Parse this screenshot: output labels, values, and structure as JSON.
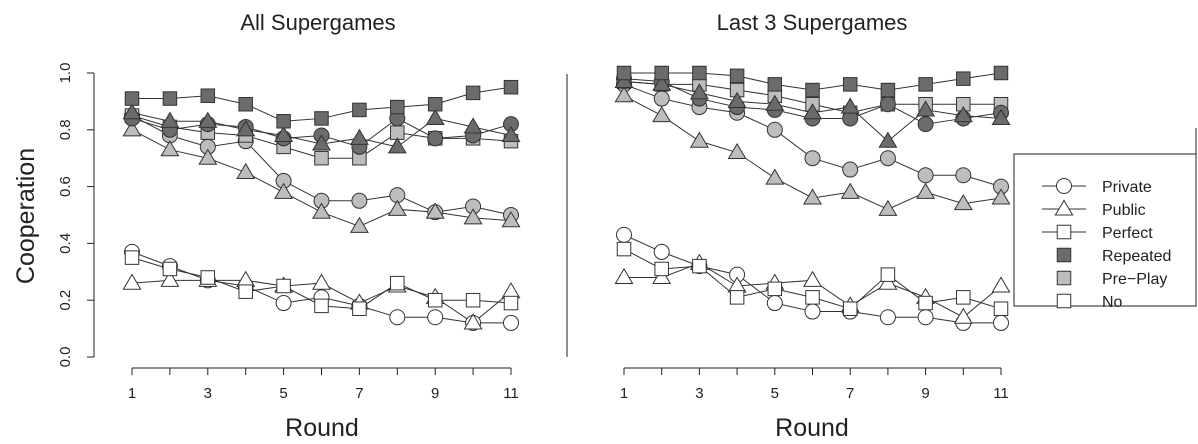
{
  "ylabel": "Cooperation",
  "colors": {
    "line": "#333333",
    "dark": "#6b6b6b",
    "gray": "#bdbdbd",
    "white": "#ffffff"
  },
  "legend": {
    "items": [
      {
        "label": "Private",
        "shape": "circle",
        "fill": "white",
        "line": true
      },
      {
        "label": "Public",
        "shape": "triangle",
        "fill": "white",
        "line": true
      },
      {
        "label": "Perfect",
        "shape": "square",
        "fill": "white",
        "line": true
      },
      {
        "label": "Repeated",
        "shape": "square",
        "fill": "dark",
        "line": false
      },
      {
        "label": "Pre−Play",
        "shape": "square",
        "fill": "gray",
        "line": false
      },
      {
        "label": "No",
        "shape": "square",
        "fill": "white",
        "line": false
      }
    ]
  },
  "chart_data": [
    {
      "type": "line",
      "title": "All Supergames",
      "xlabel": "Round",
      "ylabel": "Cooperation",
      "xlim": [
        1,
        11
      ],
      "ylim": [
        0,
        1
      ],
      "xticks": [
        1,
        3,
        5,
        7,
        9,
        11
      ],
      "yticks": [
        "0.0",
        "0.2",
        "0.4",
        "0.6",
        "0.8",
        "1.0"
      ],
      "x": [
        1,
        2,
        3,
        4,
        5,
        6,
        7,
        8,
        9,
        10,
        11
      ],
      "series": [
        {
          "name": "Private",
          "shape": "circle",
          "fill": "white",
          "values": [
            0.37,
            0.32,
            0.27,
            0.25,
            0.19,
            0.21,
            0.18,
            0.14,
            0.14,
            0.12,
            0.12
          ]
        },
        {
          "name": "Public",
          "shape": "triangle",
          "fill": "white",
          "values": [
            0.26,
            0.27,
            0.27,
            0.27,
            0.25,
            0.26,
            0.19,
            0.25,
            0.21,
            0.12,
            0.23
          ]
        },
        {
          "name": "Perfect",
          "shape": "square",
          "fill": "white",
          "values": [
            0.35,
            0.31,
            0.28,
            0.23,
            0.25,
            0.18,
            0.17,
            0.26,
            0.2,
            0.2,
            0.19
          ]
        },
        {
          "name": "Private",
          "shape": "circle",
          "fill": "gray",
          "values": [
            0.85,
            0.78,
            0.74,
            0.76,
            0.62,
            0.55,
            0.55,
            0.57,
            0.51,
            0.53,
            0.5
          ]
        },
        {
          "name": "Public",
          "shape": "triangle",
          "fill": "gray",
          "values": [
            0.8,
            0.73,
            0.7,
            0.65,
            0.58,
            0.51,
            0.46,
            0.52,
            0.51,
            0.49,
            0.48
          ]
        },
        {
          "name": "Perfect",
          "shape": "square",
          "fill": "gray",
          "values": [
            0.85,
            0.81,
            0.79,
            0.78,
            0.74,
            0.7,
            0.7,
            0.79,
            0.77,
            0.77,
            0.76
          ]
        },
        {
          "name": "Private",
          "shape": "circle",
          "fill": "dark",
          "values": [
            0.84,
            0.8,
            0.82,
            0.81,
            0.77,
            0.78,
            0.74,
            0.84,
            0.77,
            0.78,
            0.82
          ]
        },
        {
          "name": "Public",
          "shape": "triangle",
          "fill": "dark",
          "values": [
            0.86,
            0.83,
            0.83,
            0.8,
            0.78,
            0.75,
            0.77,
            0.74,
            0.84,
            0.81,
            0.78
          ]
        },
        {
          "name": "Perfect",
          "shape": "square",
          "fill": "dark",
          "values": [
            0.91,
            0.91,
            0.92,
            0.89,
            0.83,
            0.84,
            0.87,
            0.88,
            0.89,
            0.93,
            0.95
          ]
        }
      ]
    },
    {
      "type": "line",
      "title": "Last 3 Supergames",
      "xlabel": "Round",
      "ylabel": "",
      "xlim": [
        1,
        11
      ],
      "ylim": [
        0,
        1
      ],
      "xticks": [
        1,
        3,
        5,
        7,
        9,
        11
      ],
      "yticks": [],
      "x": [
        1,
        2,
        3,
        4,
        5,
        6,
        7,
        8,
        9,
        10,
        11
      ],
      "series": [
        {
          "name": "Private",
          "shape": "circle",
          "fill": "white",
          "values": [
            0.43,
            0.37,
            0.32,
            0.29,
            0.19,
            0.16,
            0.16,
            0.14,
            0.14,
            0.12,
            0.12
          ]
        },
        {
          "name": "Public",
          "shape": "triangle",
          "fill": "white",
          "values": [
            0.28,
            0.28,
            0.33,
            0.25,
            0.26,
            0.27,
            0.18,
            0.26,
            0.21,
            0.14,
            0.25
          ]
        },
        {
          "name": "Perfect",
          "shape": "square",
          "fill": "white",
          "values": [
            0.38,
            0.31,
            0.32,
            0.21,
            0.24,
            0.21,
            0.17,
            0.29,
            0.19,
            0.21,
            0.17
          ]
        },
        {
          "name": "Private",
          "shape": "circle",
          "fill": "gray",
          "values": [
            0.96,
            0.91,
            0.88,
            0.86,
            0.8,
            0.7,
            0.66,
            0.7,
            0.64,
            0.64,
            0.6
          ]
        },
        {
          "name": "Public",
          "shape": "triangle",
          "fill": "gray",
          "values": [
            0.92,
            0.85,
            0.76,
            0.72,
            0.63,
            0.56,
            0.58,
            0.52,
            0.58,
            0.54,
            0.56
          ]
        },
        {
          "name": "Perfect",
          "shape": "square",
          "fill": "gray",
          "values": [
            0.97,
            0.96,
            0.96,
            0.94,
            0.92,
            0.89,
            0.86,
            0.89,
            0.89,
            0.89,
            0.89
          ]
        },
        {
          "name": "Private",
          "shape": "circle",
          "fill": "dark",
          "values": [
            0.98,
            0.97,
            0.91,
            0.88,
            0.87,
            0.84,
            0.84,
            0.89,
            0.82,
            0.84,
            0.86
          ]
        },
        {
          "name": "Public",
          "shape": "triangle",
          "fill": "dark",
          "values": [
            0.97,
            0.96,
            0.93,
            0.9,
            0.89,
            0.86,
            0.88,
            0.76,
            0.87,
            0.85,
            0.84
          ]
        },
        {
          "name": "Perfect",
          "shape": "square",
          "fill": "dark",
          "values": [
            1.0,
            1.0,
            1.0,
            0.99,
            0.96,
            0.94,
            0.96,
            0.94,
            0.96,
            0.98,
            1.0
          ]
        }
      ]
    }
  ]
}
